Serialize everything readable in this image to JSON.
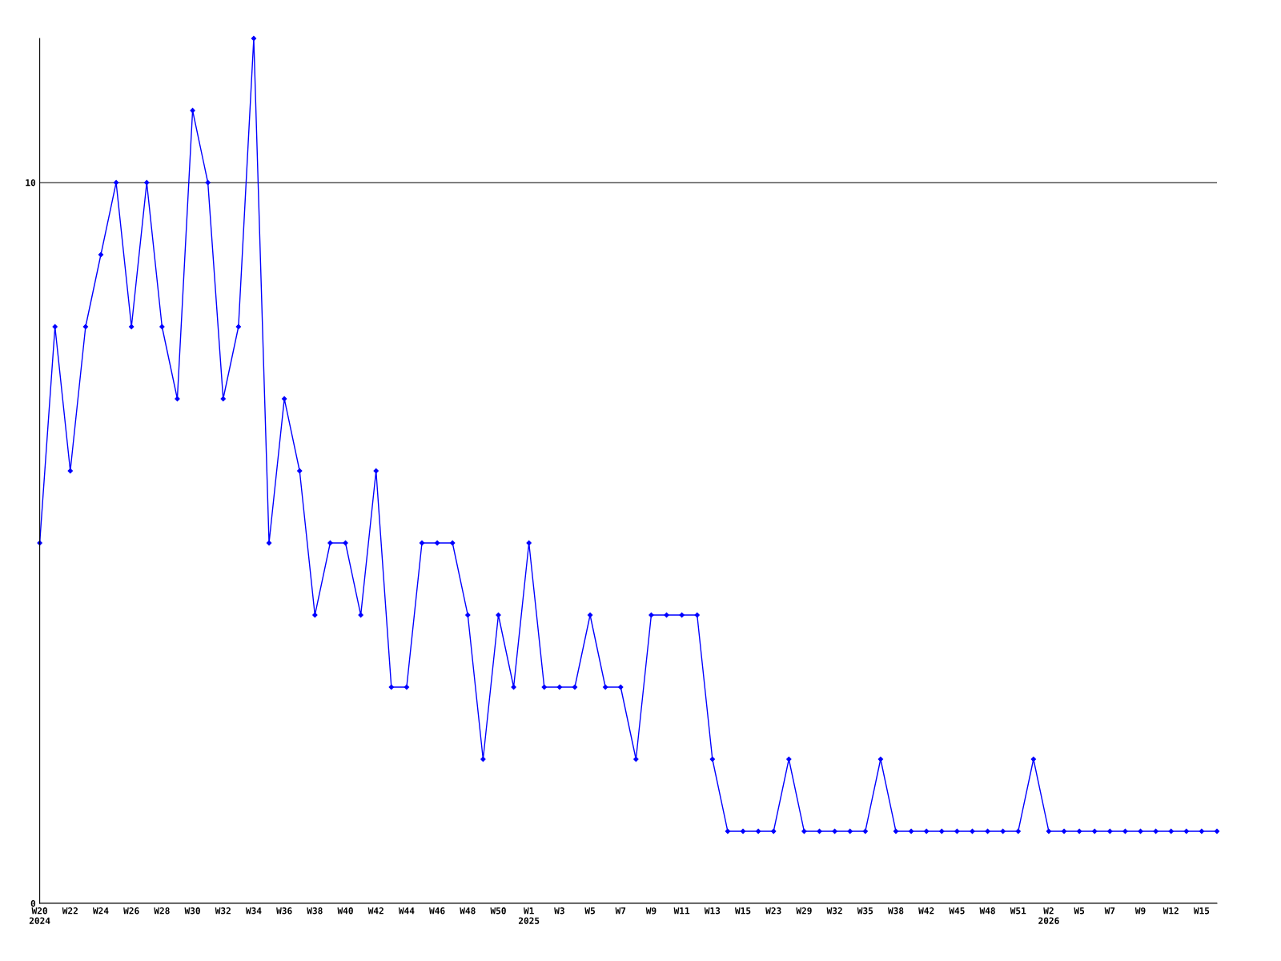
{
  "chart_data": {
    "type": "line",
    "categories": [
      "W20\n2024",
      null,
      "W22",
      null,
      "W24",
      null,
      "W26",
      null,
      "W28",
      null,
      "W30",
      null,
      "W32",
      null,
      "W34",
      null,
      "W36",
      null,
      "W38",
      null,
      "W40",
      null,
      "W42",
      null,
      "W44",
      null,
      "W46",
      null,
      "W48",
      null,
      "W50",
      null,
      "W1\n2025",
      null,
      "W3",
      null,
      "W5",
      null,
      "W7",
      null,
      "W9",
      null,
      "W11",
      null,
      "W13",
      null,
      "W15",
      null,
      "W23",
      null,
      "W29",
      null,
      "W32",
      null,
      "W35",
      null,
      "W38",
      null,
      "W42",
      null,
      "W45",
      null,
      "W48",
      null,
      "W51",
      null,
      "W2\n2026",
      null,
      "W5",
      null,
      "W7",
      null,
      "W9",
      null,
      "W12",
      null,
      "W15",
      null
    ],
    "series": [
      {
        "color": "#0000ff",
        "values": [
          5,
          8,
          6,
          8,
          9,
          10,
          8,
          10,
          8,
          7,
          11,
          10,
          7,
          8,
          12,
          5,
          7,
          6,
          4,
          5,
          5,
          4,
          6,
          3,
          3,
          5,
          5,
          5,
          4,
          2,
          4,
          3,
          5,
          3,
          3,
          3,
          4,
          3,
          3,
          2,
          4,
          4,
          4,
          4,
          2,
          1,
          1,
          1,
          1,
          2,
          1,
          1,
          1,
          1,
          1,
          2,
          1,
          1,
          1,
          1,
          1,
          1,
          1,
          1,
          1,
          2,
          1,
          1,
          1,
          1,
          1,
          1,
          1,
          1,
          1,
          1,
          1,
          1
        ]
      }
    ],
    "ylim": [
      0,
      12
    ],
    "yticks": [
      0,
      10
    ],
    "grid": "y",
    "marker": "diamond",
    "line_style": "solid",
    "legend": false
  }
}
